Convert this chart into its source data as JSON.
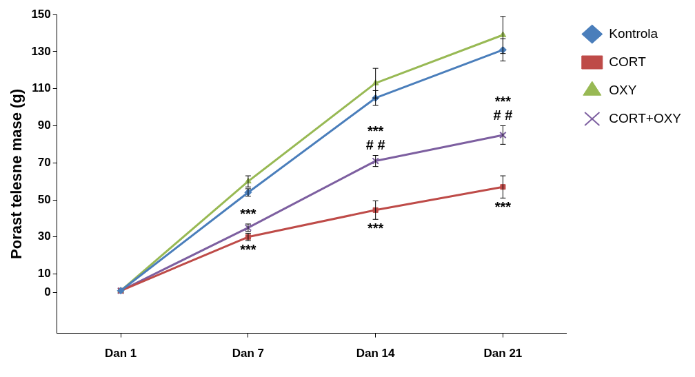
{
  "chart_data": {
    "type": "line",
    "ylabel": "Porast telesne mase (g)",
    "categories": [
      "Dan 1",
      "Dan 7",
      "Dan 14",
      "Dan 21"
    ],
    "ylim": [
      -22,
      150
    ],
    "yticks": [
      0,
      10,
      30,
      50,
      70,
      90,
      110,
      130,
      150
    ],
    "grid": false,
    "legend": "right",
    "series": [
      {
        "name": "Kontrola",
        "color": "#4a7ebb",
        "marker": "diamond",
        "values": [
          1,
          54,
          105,
          131
        ],
        "errors": [
          null,
          2,
          4,
          6
        ]
      },
      {
        "name": "CORT",
        "color": "#be4b48",
        "marker": "square",
        "values": [
          1,
          30,
          44.5,
          57
        ],
        "errors": [
          null,
          2,
          5,
          6
        ]
      },
      {
        "name": "OXY",
        "color": "#98b954",
        "marker": "triangle",
        "values": [
          1,
          60,
          113,
          139
        ],
        "errors": [
          null,
          3,
          8,
          10
        ]
      },
      {
        "name": "CORT+OXY",
        "color": "#7d5fa0",
        "marker": "cross",
        "values": [
          1,
          35,
          71,
          85
        ],
        "errors": [
          null,
          2,
          3,
          5
        ]
      }
    ],
    "annotations": [
      {
        "text": "***",
        "x": "Dan 7",
        "y": 35
      },
      {
        "text": "***",
        "x": "Dan 7",
        "y": 30
      },
      {
        "text": "***",
        "x": "Dan 14",
        "y": 71
      },
      {
        "text": "# #",
        "x": "Dan 14",
        "y": 71
      },
      {
        "text": "***",
        "x": "Dan 14",
        "y": 44.5
      },
      {
        "text": "***",
        "x": "Dan 21",
        "y": 85
      },
      {
        "text": "# #",
        "x": "Dan 21",
        "y": 85
      },
      {
        "text": "***",
        "x": "Dan 21",
        "y": 57
      }
    ]
  }
}
